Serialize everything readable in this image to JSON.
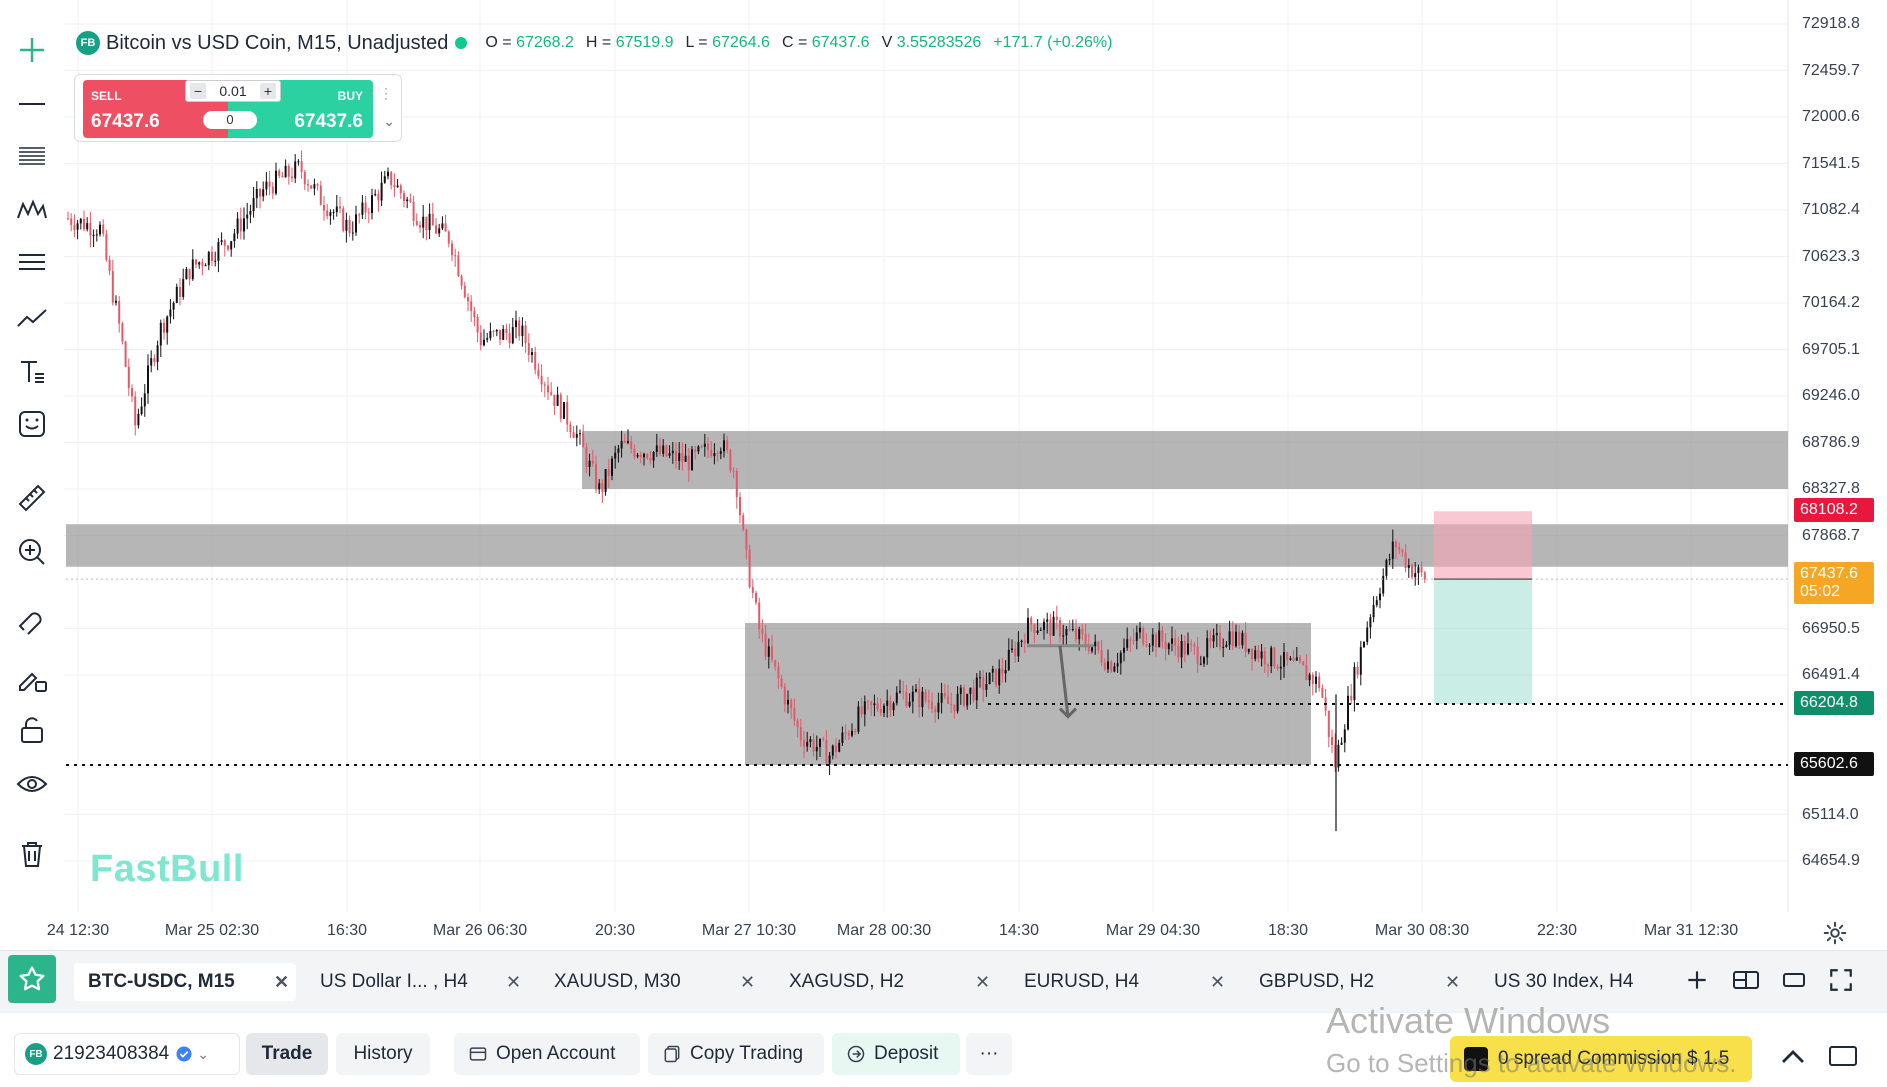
{
  "legend": {
    "badge": "FB",
    "title": "Bitcoin vs USD Coin, M15, Unadjusted",
    "ohlc": [
      {
        "label": "O =",
        "value": "67268.2"
      },
      {
        "label": "H =",
        "value": "67519.9"
      },
      {
        "label": "L =",
        "value": "67264.6"
      },
      {
        "label": "C =",
        "value": "67437.6"
      },
      {
        "label": "V",
        "value": "3.55283526"
      }
    ],
    "change": "+171.7 (+0.26%)"
  },
  "trade_widget": {
    "sell_label": "SELL",
    "buy_label": "BUY",
    "sell_price": "67437.6",
    "buy_price": "67437.6",
    "quantity": "0.01",
    "spread": "0",
    "minus": "−",
    "plus": "+"
  },
  "watermark": "FastBull",
  "toolbar": [
    "crosshair-icon",
    "horizontal-line-icon",
    "fibonacci-icon",
    "pattern-icon",
    "channel-icon",
    "trend-line-icon",
    "text-tool-icon",
    "emoji-icon",
    "ruler-icon",
    "zoom-in-icon",
    "magnet-icon",
    "brush-lock-icon",
    "lock-icon",
    "eye-icon",
    "trash-icon"
  ],
  "price_axis": {
    "ticks": [
      "72918.8",
      "72459.7",
      "72000.6",
      "71541.5",
      "71082.4",
      "70623.3",
      "70164.2",
      "69705.1",
      "69246.0",
      "68786.9",
      "68327.8",
      "67868.7",
      "66950.5",
      "66491.4",
      "65114.0",
      "64654.9"
    ],
    "tags": [
      {
        "text": "68108.2",
        "color": "#e8173c"
      },
      {
        "text": "67437.6",
        "sub": "05:02",
        "color": "#f5a623"
      },
      {
        "text": "66204.8",
        "color": "#0d8f6a"
      },
      {
        "text": "65602.6",
        "color": "#111111"
      }
    ]
  },
  "time_axis": [
    "24 12:30",
    "Mar 25 02:30",
    "16:30",
    "Mar 26 06:30",
    "20:30",
    "Mar 27 10:30",
    "Mar 28 00:30",
    "14:30",
    "Mar 29 04:30",
    "18:30",
    "Mar 30 08:30",
    "22:30",
    "Mar 31 12:30"
  ],
  "tabs": [
    {
      "label": "BTC-USDC, M15",
      "active": true
    },
    {
      "label": "US Dollar I... , H4"
    },
    {
      "label": "XAUUSD, M30"
    },
    {
      "label": "XAGUSD, H2"
    },
    {
      "label": "EURUSD, H4"
    },
    {
      "label": "GBPUSD, H2"
    },
    {
      "label": "US 30 Index, H4"
    }
  ],
  "tab_close": "✕",
  "bottom": {
    "account_badge": "FB",
    "account": "21923408384",
    "trade": "Trade",
    "history": "History",
    "open_account": "Open Account",
    "copy_trading": "Copy Trading",
    "deposit": "Deposit",
    "more": "···",
    "promo": "0 spread Commission $ 1.5"
  },
  "os_overlay": {
    "line1": "Activate Windows",
    "line2": "Go to Settings to activate Windows."
  },
  "colors": {
    "bull": "#111111",
    "bear": "#e05a6a",
    "zone": "#9a9a9a",
    "accent": "#2cb58a"
  }
}
